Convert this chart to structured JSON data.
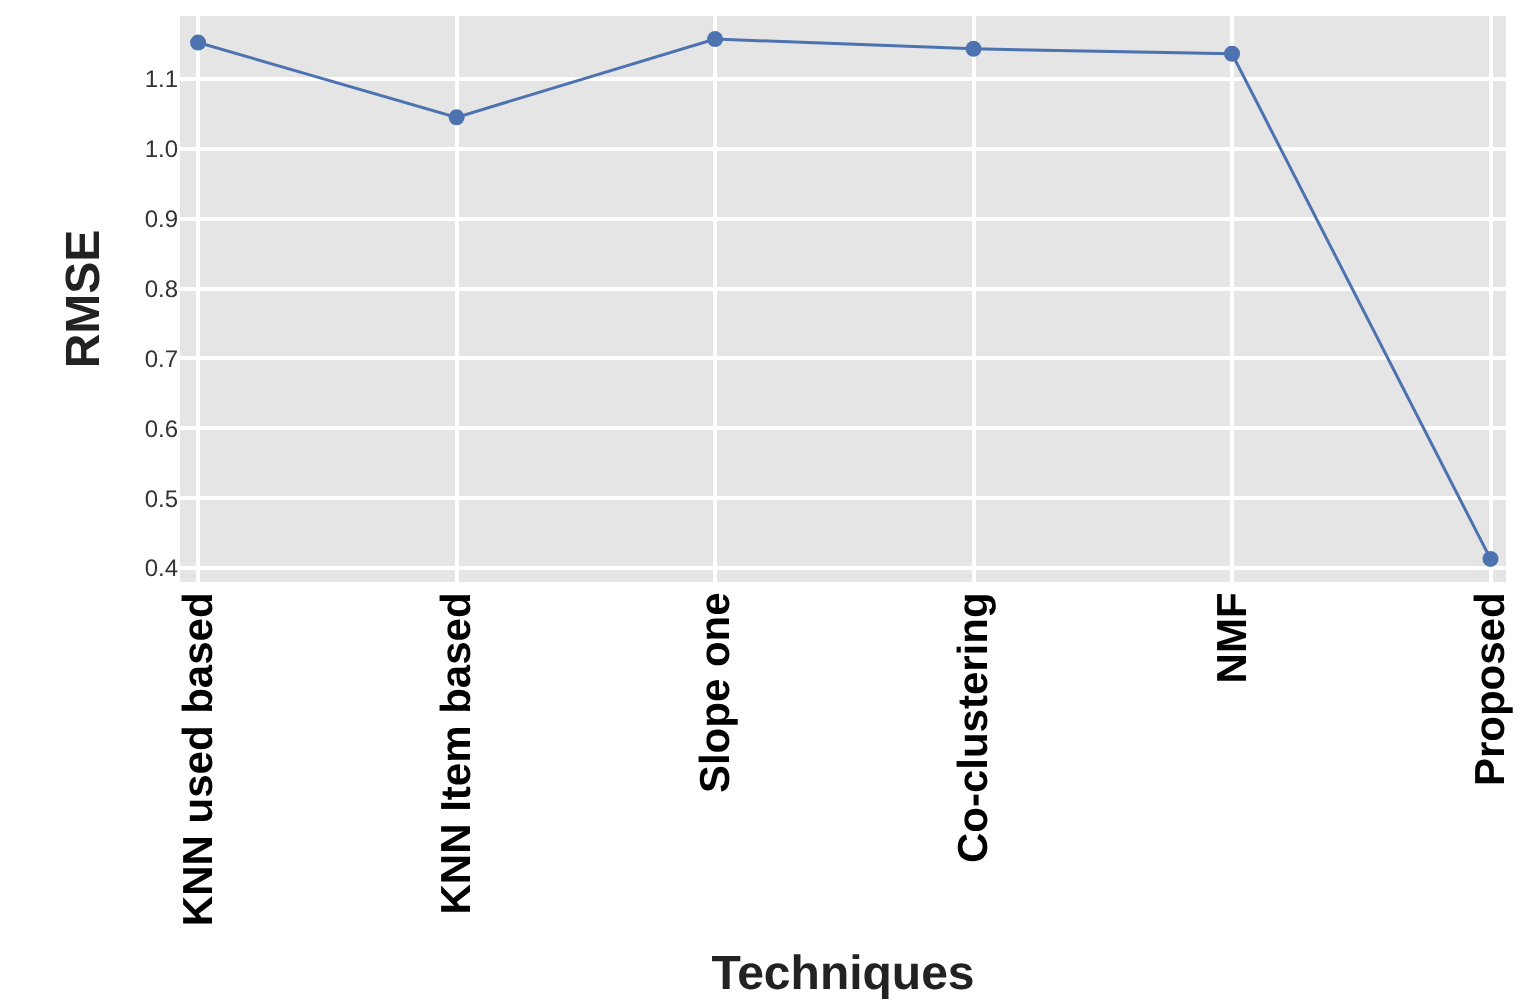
{
  "chart_data": {
    "type": "line",
    "xlabel": "Techniques",
    "ylabel": "RMSE",
    "categories": [
      "KNN used based",
      "KNN Item based",
      "Slope one",
      "Co-clustering",
      "NMF",
      "Proposed"
    ],
    "series": [
      {
        "color": "#4c72b0",
        "values": [
          1.152,
          1.045,
          1.157,
          1.143,
          1.136,
          0.413
        ]
      }
    ],
    "ylim": [
      0.38,
      1.19
    ],
    "yticks": [
      0.4,
      0.5,
      0.6,
      0.7,
      0.8,
      0.9,
      {
        "value": 1.0,
        "label": "1.0"
      },
      1.1
    ],
    "grid": true,
    "marker": "circle",
    "line_style": "solid",
    "legend": false
  }
}
